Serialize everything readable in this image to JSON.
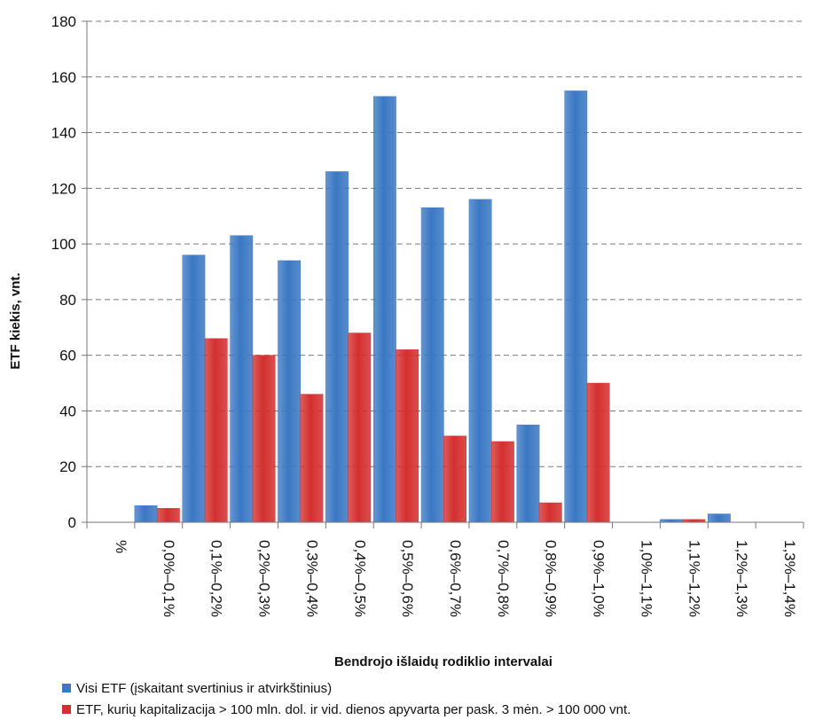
{
  "chart_data": {
    "type": "bar",
    "categories": [
      "%",
      "0,0%–0,1%",
      "0,1%–0,2%",
      "0,2%–0,3%",
      "0,3%–0,4%",
      "0,4%–0,5%",
      "0,5%–0,6%",
      "0,6%–0,7%",
      "0,7%–0,8%",
      "0,8%–0,9%",
      "0,9%–1,0%",
      "1,0%–1,1%",
      "1,1%–1,2%",
      "1,2%–1,3%",
      "1,3%–1,4%"
    ],
    "series": [
      {
        "name": "Visi ETF (įskaitant svertinius ir atvirkštinius)",
        "color": "#3a78c3",
        "values": [
          0,
          6,
          96,
          103,
          94,
          126,
          153,
          113,
          116,
          35,
          155,
          0,
          1,
          3,
          0
        ]
      },
      {
        "name": "ETF, kurių kapitalizacija  > 100 mln. dol. ir vid. dienos apyvarta per pask. 3 mėn. > 100 000 vnt.",
        "color": "#d42f2f",
        "values": [
          0,
          5,
          66,
          60,
          46,
          68,
          62,
          31,
          29,
          7,
          50,
          0,
          1,
          0,
          0
        ]
      }
    ],
    "xlabel": "Bendrojo išlaidų rodiklio intervalai",
    "ylabel": "ETF kiekis, vnt.",
    "ylim": [
      0,
      180
    ],
    "yticks": [
      0,
      20,
      40,
      60,
      80,
      100,
      120,
      140,
      160,
      180
    ],
    "grid": true,
    "legend_position": "bottom-left"
  }
}
